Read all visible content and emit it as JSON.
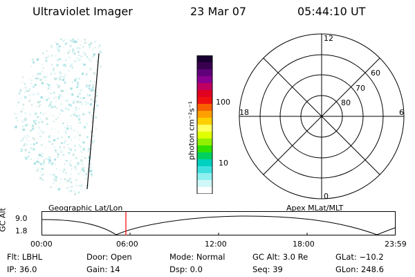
{
  "header": {
    "instrument": "Ultraviolet Imager",
    "date": "23 Mar 07",
    "time": "05:44:10 UT"
  },
  "colorbar": {
    "label": "photon cm⁻²s⁻¹",
    "ticks": [
      "100",
      "10"
    ],
    "colors": [
      "#1a0030",
      "#3a0050",
      "#60007a",
      "#8a0090",
      "#c00060",
      "#e00020",
      "#f01010",
      "#f86000",
      "#ffa000",
      "#ffd000",
      "#ffff60",
      "#e0ff00",
      "#90f000",
      "#30e000",
      "#00d060",
      "#00d0c0",
      "#40e0e0",
      "#90f0f0",
      "#d0f8f8",
      "#ffffff"
    ]
  },
  "polar_plot": {
    "mlt_labels": [
      "12",
      "6",
      "0",
      "18"
    ],
    "mlat_labels": [
      "60",
      "70",
      "80"
    ]
  },
  "timeline": {
    "left_title": "Geographic Lat/Lon",
    "right_title": "Apex MLat/MLT",
    "ylabel": "GC Alt",
    "ytick_top": "9.0",
    "ytick_bottom": "1.8",
    "xticks": [
      "00:00",
      "06:00",
      "12:00",
      "18:00",
      "23:59"
    ],
    "marker_color": "#ff0000"
  },
  "status": {
    "flt": "Flt: LBHL",
    "ip": "IP: 36.0",
    "door": "Door: Open",
    "gain": "Gain: 14",
    "mode": "Mode: Normal",
    "dsp": "Dsp:      0.0",
    "gc_alt": "GC Alt: 3.0 Re",
    "seq": "Seq: 39",
    "glat": "GLat: −10.2",
    "glon": "GLon: 248.6"
  }
}
